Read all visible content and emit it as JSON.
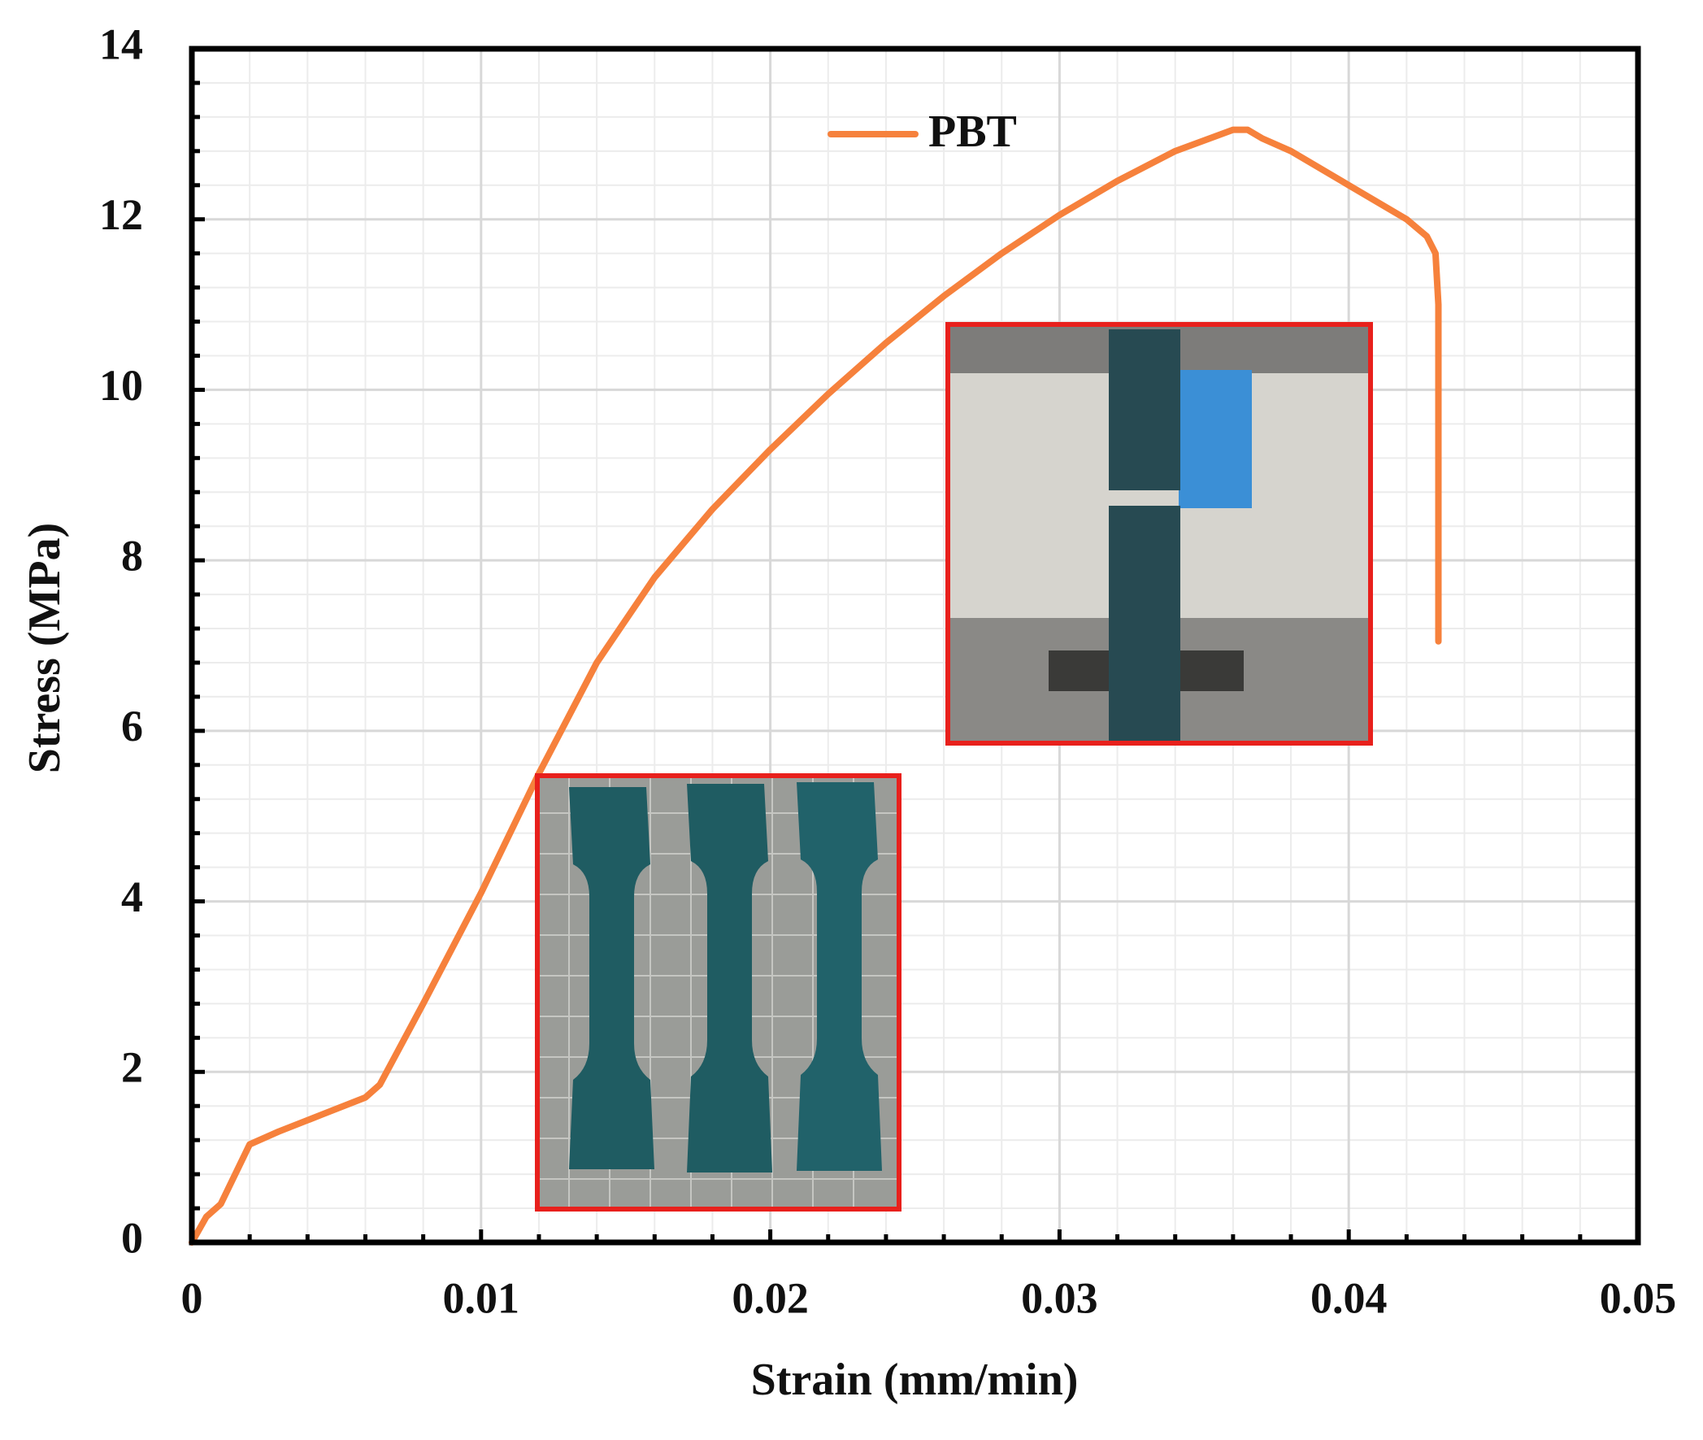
{
  "chart_data": {
    "type": "line",
    "xlabel": "Strain (mm/min)",
    "ylabel": "Stress (MPa)",
    "x": [
      0,
      0.0005,
      0.001,
      0.002,
      0.003,
      0.0045,
      0.006,
      0.0065,
      0.008,
      0.01,
      0.012,
      0.014,
      0.016,
      0.018,
      0.02,
      0.022,
      0.024,
      0.026,
      0.028,
      0.03,
      0.032,
      0.034,
      0.036,
      0.0365,
      0.037,
      0.038,
      0.04,
      0.042,
      0.0427,
      0.043,
      0.0431,
      0.0431
    ],
    "series": [
      {
        "name": "PBT",
        "color": "#f6813c",
        "values": [
          0,
          0.3,
          0.45,
          1.15,
          1.3,
          1.5,
          1.7,
          1.85,
          2.8,
          4.1,
          5.5,
          6.8,
          7.8,
          8.6,
          9.3,
          9.95,
          10.55,
          11.1,
          11.6,
          12.05,
          12.45,
          12.8,
          13.05,
          13.05,
          12.95,
          12.8,
          12.4,
          12.0,
          11.8,
          11.6,
          11.0,
          7.05
        ]
      }
    ],
    "xlim": [
      0,
      0.05
    ],
    "xticks": [
      0,
      0.01,
      0.02,
      0.03,
      0.04,
      0.05
    ],
    "ylim": [
      0,
      14
    ],
    "yticks": [
      0,
      2,
      4,
      6,
      8,
      10,
      12,
      14
    ],
    "grid": true
  }
}
